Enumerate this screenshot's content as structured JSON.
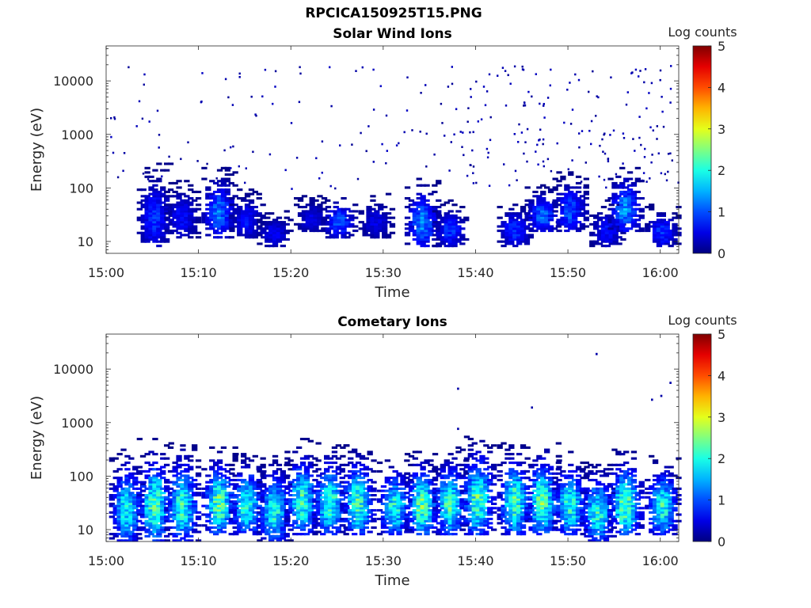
{
  "figure": {
    "title": "RPCICA150925T15.PNG"
  },
  "colors": {
    "colormap": "jet",
    "axis": "#262626"
  },
  "chart_data": [
    {
      "type": "heatmap",
      "title": "Solar Wind Ions",
      "xlabel": "Time",
      "ylabel": "Energy (eV)",
      "colorbar_label": "Log counts",
      "y_scale": "log",
      "xlim": [
        "15:00",
        "16:02"
      ],
      "ylim": [
        6,
        45000
      ],
      "clim": [
        0,
        5
      ],
      "xticks": [
        "15:00",
        "15:10",
        "15:20",
        "15:30",
        "15:40",
        "15:50",
        "16:00"
      ],
      "yticks": [
        "10",
        "100",
        "1000",
        "10000"
      ],
      "colorbar_ticks": [
        "0",
        "1",
        "2",
        "3",
        "4",
        "5"
      ],
      "grid": false,
      "description_of_values": "Sparse low-count (log counts ~0-2) events; bursts near 10-300 eV roughly every 3.5 min, with scattered single counts from 100 to 20000 eV increasing after 15:35",
      "bursts": [
        {
          "time": "15:05",
          "e_low": 8,
          "e_high": 300,
          "peak": 1.0
        },
        {
          "time": "15:08",
          "e_low": 12,
          "e_high": 150,
          "peak": 0.8
        },
        {
          "time": "15:12",
          "e_low": 12,
          "e_high": 250,
          "peak": 1.4
        },
        {
          "time": "15:15",
          "e_low": 12,
          "e_high": 100,
          "peak": 0.8
        },
        {
          "time": "15:18",
          "e_low": 8,
          "e_high": 40,
          "peak": 0.7
        },
        {
          "time": "15:22",
          "e_low": 15,
          "e_high": 80,
          "peak": 0.6
        },
        {
          "time": "15:25",
          "e_low": 12,
          "e_high": 80,
          "peak": 1.2
        },
        {
          "time": "15:29",
          "e_low": 12,
          "e_high": 80,
          "peak": 0.6
        },
        {
          "time": "15:34",
          "e_low": 8,
          "e_high": 160,
          "peak": 1.5
        },
        {
          "time": "15:37",
          "e_low": 8,
          "e_high": 60,
          "peak": 1.0
        },
        {
          "time": "15:44",
          "e_low": 8,
          "e_high": 60,
          "peak": 1.0
        },
        {
          "time": "15:47",
          "e_low": 15,
          "e_high": 120,
          "peak": 1.3
        },
        {
          "time": "15:50",
          "e_low": 15,
          "e_high": 200,
          "peak": 1.2
        },
        {
          "time": "15:54",
          "e_low": 8,
          "e_high": 60,
          "peak": 0.8
        },
        {
          "time": "15:56",
          "e_low": 15,
          "e_high": 250,
          "peak": 1.6
        },
        {
          "time": "16:00",
          "e_low": 8,
          "e_high": 50,
          "peak": 1.0
        }
      ]
    },
    {
      "type": "heatmap",
      "title": "Cometary Ions",
      "xlabel": "Time",
      "ylabel": "Energy (eV)",
      "colorbar_label": "Log counts",
      "y_scale": "log",
      "xlim": [
        "15:00",
        "16:02"
      ],
      "ylim": [
        6,
        45000
      ],
      "clim": [
        0,
        5
      ],
      "xticks": [
        "15:00",
        "15:10",
        "15:20",
        "15:30",
        "15:40",
        "15:50",
        "16:00"
      ],
      "yticks": [
        "10",
        "100",
        "1000",
        "10000"
      ],
      "colorbar_ticks": [
        "0",
        "1",
        "2",
        "3",
        "4",
        "5"
      ],
      "grid": false,
      "description_of_values": "Periodic bursts every ~3.5 min between ~6 and ~600 eV with peak log counts ~2-3 near 20-80 eV; a few isolated counts above 1000 eV",
      "bursts": [
        {
          "time": "15:02",
          "e_low": 6,
          "e_high": 350,
          "peak": 2.2
        },
        {
          "time": "15:05",
          "e_low": 6,
          "e_high": 500,
          "peak": 2.6
        },
        {
          "time": "15:08",
          "e_low": 6,
          "e_high": 450,
          "peak": 2.4
        },
        {
          "time": "15:12",
          "e_low": 8,
          "e_high": 350,
          "peak": 2.7
        },
        {
          "time": "15:15",
          "e_low": 8,
          "e_high": 300,
          "peak": 2.4
        },
        {
          "time": "15:18",
          "e_low": 6,
          "e_high": 250,
          "peak": 2.3
        },
        {
          "time": "15:21",
          "e_low": 8,
          "e_high": 500,
          "peak": 2.5
        },
        {
          "time": "15:24",
          "e_low": 8,
          "e_high": 400,
          "peak": 2.5
        },
        {
          "time": "15:27",
          "e_low": 8,
          "e_high": 400,
          "peak": 2.6
        },
        {
          "time": "15:31",
          "e_low": 8,
          "e_high": 250,
          "peak": 2.3
        },
        {
          "time": "15:34",
          "e_low": 8,
          "e_high": 300,
          "peak": 2.8
        },
        {
          "time": "15:37",
          "e_low": 8,
          "e_high": 350,
          "peak": 2.5
        },
        {
          "time": "15:40",
          "e_low": 8,
          "e_high": 600,
          "peak": 2.6
        },
        {
          "time": "15:44",
          "e_low": 8,
          "e_high": 450,
          "peak": 2.6
        },
        {
          "time": "15:47",
          "e_low": 8,
          "e_high": 450,
          "peak": 2.7
        },
        {
          "time": "15:50",
          "e_low": 8,
          "e_high": 300,
          "peak": 2.4
        },
        {
          "time": "15:53",
          "e_low": 6,
          "e_high": 200,
          "peak": 2.4
        },
        {
          "time": "15:56",
          "e_low": 8,
          "e_high": 350,
          "peak": 2.8
        },
        {
          "time": "16:00",
          "e_low": 8,
          "e_high": 250,
          "peak": 2.4
        }
      ],
      "isolated_counts": [
        {
          "time": "15:38",
          "energy": 4500
        },
        {
          "time": "15:38",
          "energy": 800
        },
        {
          "time": "15:46",
          "energy": 2000
        },
        {
          "time": "15:53",
          "energy": 20000
        },
        {
          "time": "15:59",
          "energy": 2800
        },
        {
          "time": "16:00",
          "energy": 3300
        },
        {
          "time": "16:01",
          "energy": 5800
        }
      ]
    }
  ]
}
